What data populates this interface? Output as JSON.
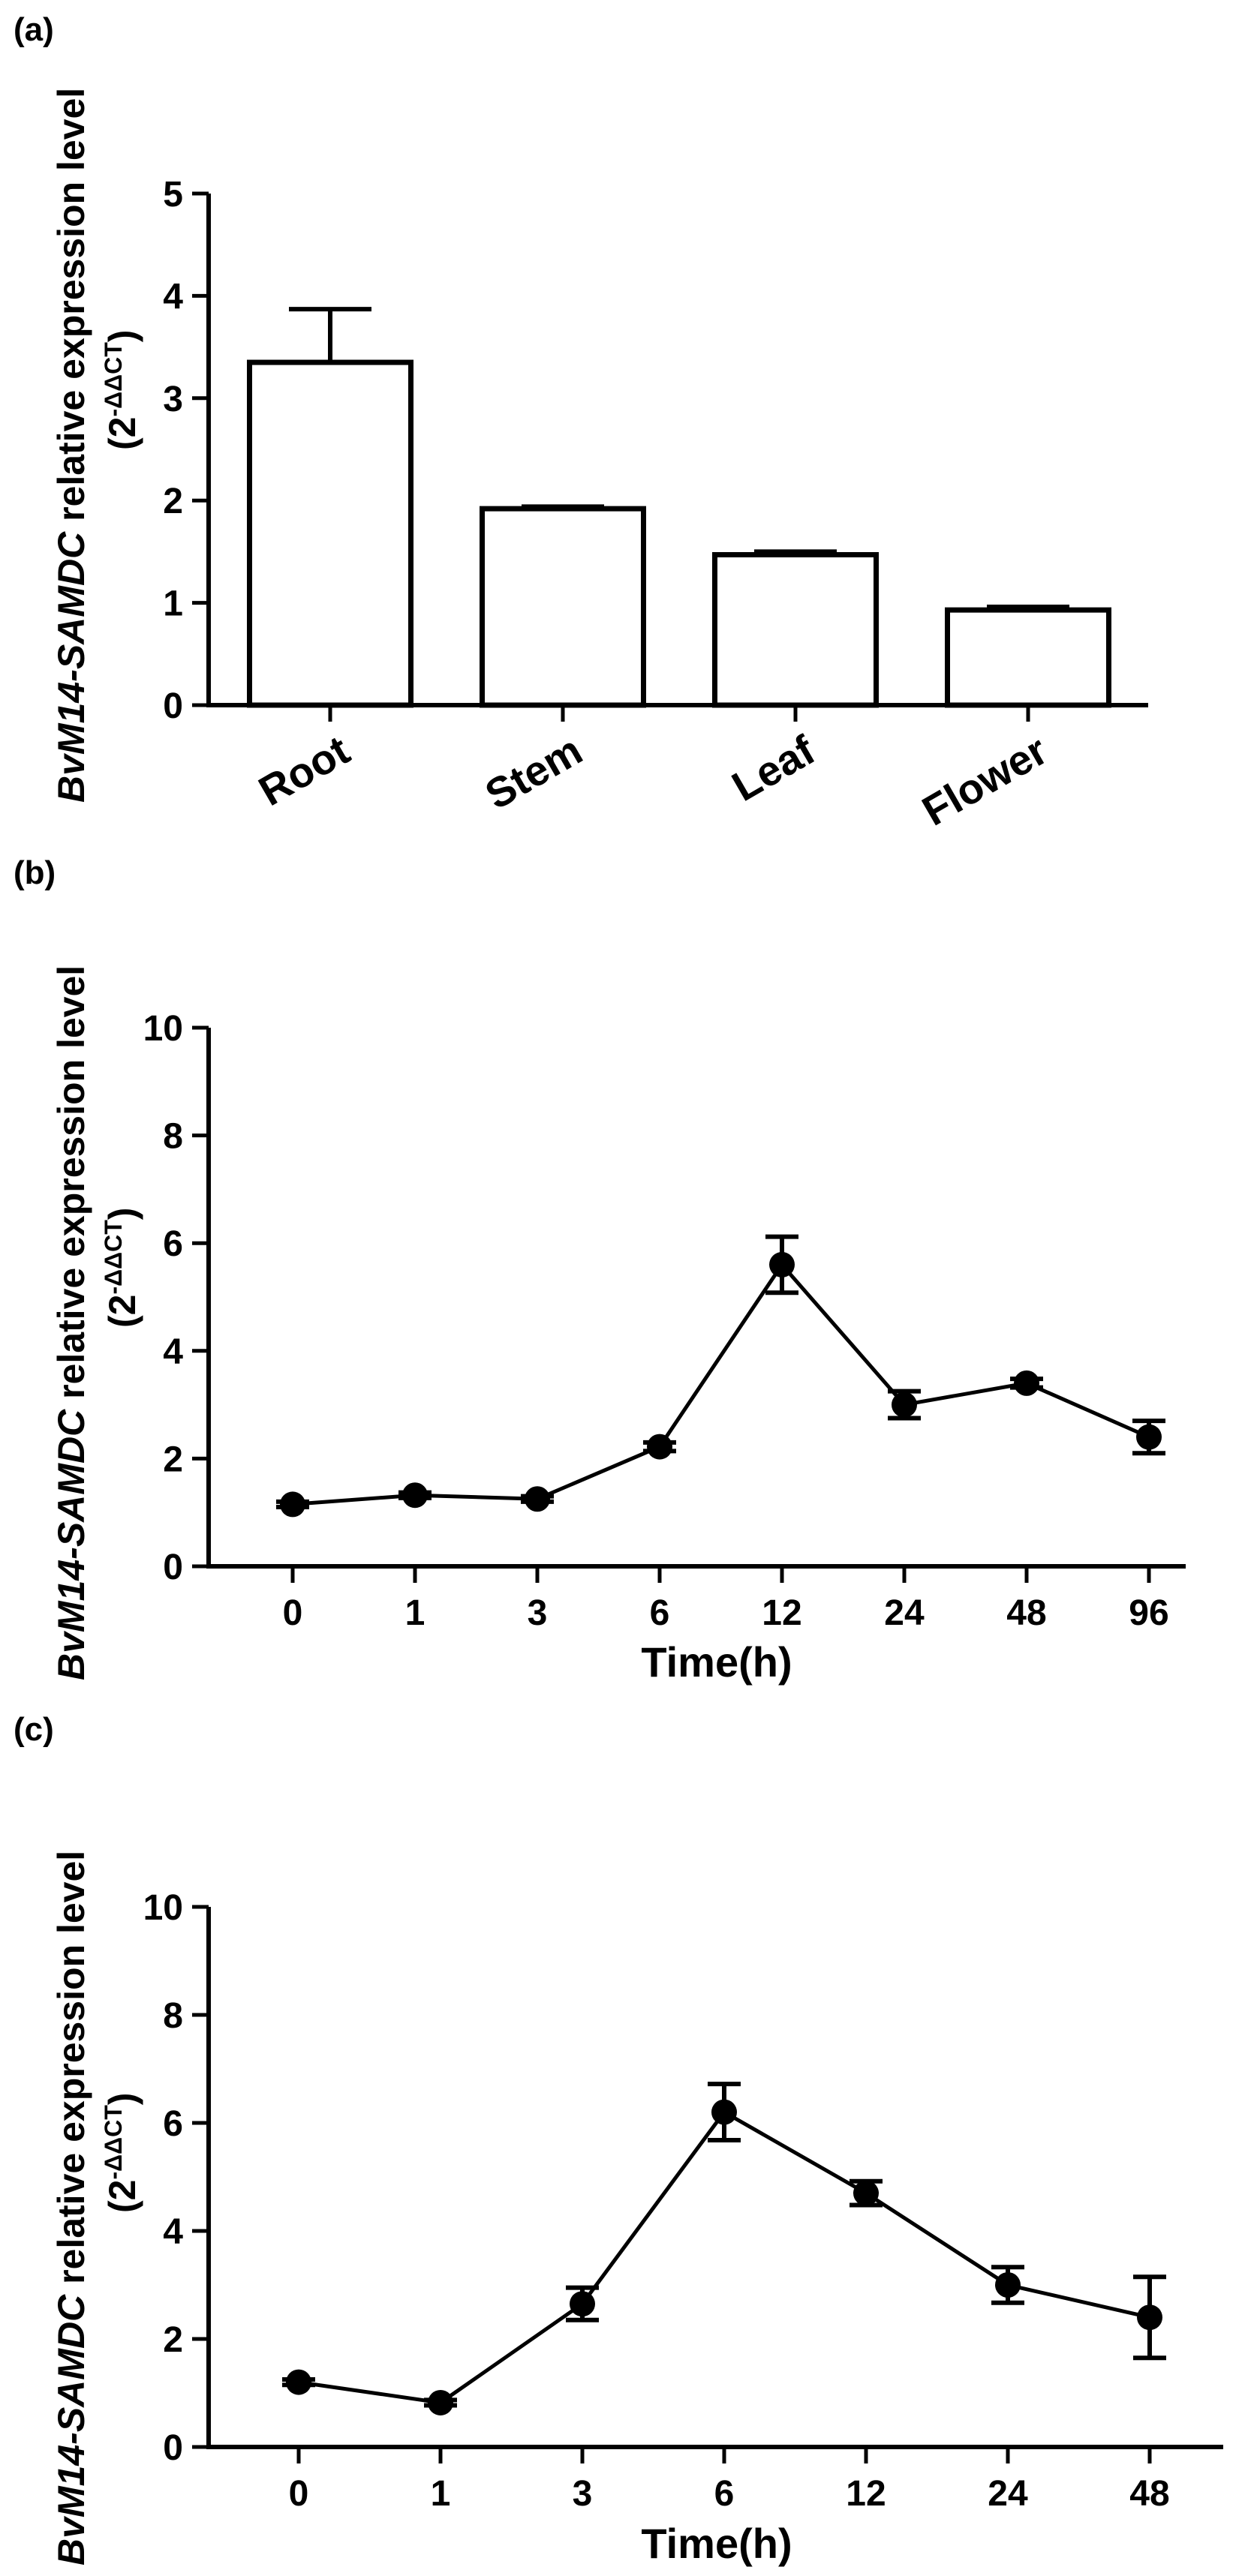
{
  "chart_data": [
    {
      "type": "bar",
      "panel_label": "(a)",
      "title": "",
      "ylabel": "BvM14-SAMDC relative expression level",
      "ylabel_italic": "BvM14-SAMDC",
      "ylabel_rest": " relative expression level",
      "ylabel_line2": "(2-ΔΔCT)",
      "ylabel_base": "(2",
      "ylabel_sup": "-ΔΔCT",
      "ylabel_close": ")",
      "xlabel": "",
      "ylim": [
        0,
        5
      ],
      "yticks": [
        "0",
        "1",
        "2",
        "3",
        "4",
        "5"
      ],
      "categories": [
        "Root",
        "Stem",
        "Leaf",
        "Flower"
      ],
      "values": [
        3.35,
        1.92,
        1.47,
        0.93
      ],
      "errors": [
        0.52,
        0.02,
        0.03,
        0.03
      ]
    },
    {
      "type": "line",
      "panel_label": "(b)",
      "title": "",
      "ylabel": "BvM14-SAMDC relative expression level",
      "ylabel_italic": "BvM14-SAMDC",
      "ylabel_rest": " relative expression level",
      "ylabel_line2": "(2-ΔΔCT)",
      "ylabel_base": "(2",
      "ylabel_sup": "-ΔΔCT",
      "ylabel_close": ")",
      "xlabel": "Time(h)",
      "ylim": [
        0,
        10
      ],
      "yticks": [
        "0",
        "2",
        "4",
        "6",
        "8",
        "10"
      ],
      "categories": [
        "0",
        "1",
        "3",
        "6",
        "12",
        "24",
        "48",
        "96"
      ],
      "values": [
        1.15,
        1.32,
        1.25,
        2.22,
        5.6,
        3.0,
        3.4,
        2.4
      ],
      "errors": [
        0.05,
        0.05,
        0.05,
        0.08,
        0.52,
        0.25,
        0.08,
        0.3
      ]
    },
    {
      "type": "line",
      "panel_label": "(c)",
      "title": "",
      "ylabel": "BvM14-SAMDC relative expression level",
      "ylabel_italic": "BvM14-SAMDC",
      "ylabel_rest": " relative expression level",
      "ylabel_line2": "(2-ΔΔCT)",
      "ylabel_base": "(2",
      "ylabel_sup": "-ΔΔCT",
      "ylabel_close": ")",
      "xlabel": "Time(h)",
      "ylim": [
        0,
        10
      ],
      "yticks": [
        "0",
        "2",
        "4",
        "6",
        "8",
        "10"
      ],
      "categories": [
        "0",
        "1",
        "3",
        "6",
        "12",
        "24",
        "48"
      ],
      "values": [
        1.2,
        0.82,
        2.65,
        6.2,
        4.7,
        3.0,
        2.4
      ],
      "errors": [
        0.05,
        0.05,
        0.3,
        0.52,
        0.22,
        0.33,
        0.75
      ]
    }
  ]
}
